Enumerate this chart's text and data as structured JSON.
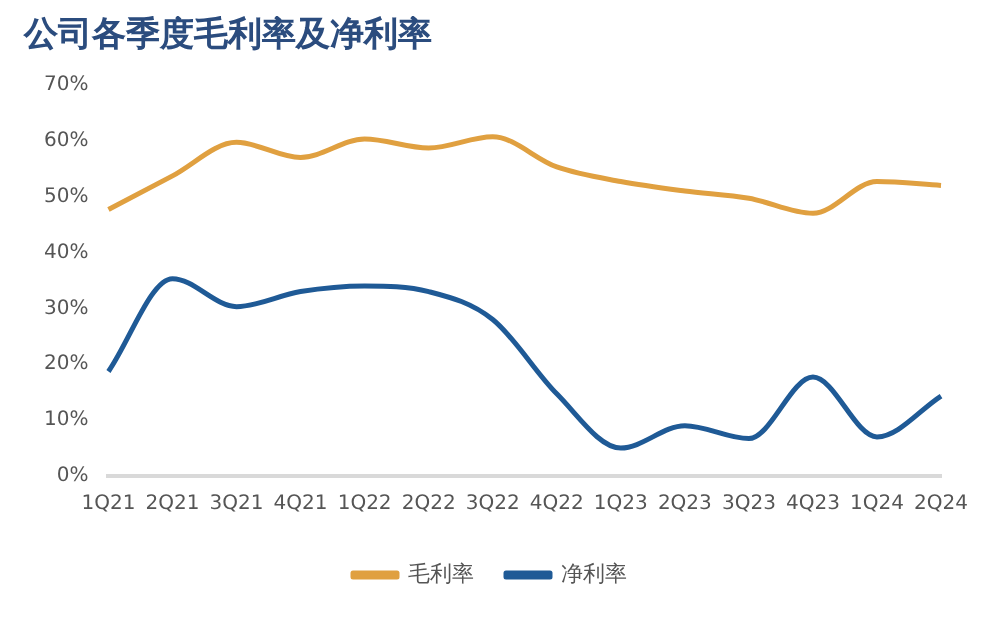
{
  "chart_data": {
    "type": "line",
    "title": "公司各季度毛利率及净利率",
    "categories": [
      "1Q21",
      "2Q21",
      "3Q21",
      "4Q21",
      "1Q22",
      "2Q22",
      "3Q22",
      "4Q22",
      "1Q23",
      "2Q23",
      "3Q23",
      "4Q23",
      "1Q24",
      "2Q24"
    ],
    "series": [
      {
        "name": "毛利率",
        "color": "#e0a040",
        "values": [
          47.7,
          53.7,
          59.7,
          57,
          60.3,
          58.7,
          60.7,
          55.3,
          52.7,
          51,
          49.7,
          47,
          52.7,
          52
        ]
      },
      {
        "name": "净利率",
        "color": "#1f5a96",
        "values": [
          18.7,
          35.3,
          30.3,
          33,
          34,
          33,
          28,
          14.7,
          5,
          9,
          6.7,
          17.7,
          7,
          14.3
        ]
      }
    ],
    "ylim": [
      0,
      70
    ],
    "yticks": [
      {
        "value": 0,
        "label": "0%"
      },
      {
        "value": 10,
        "label": "10%"
      },
      {
        "value": 20,
        "label": "20%"
      },
      {
        "value": 30,
        "label": "30%"
      },
      {
        "value": 40,
        "label": "40%"
      },
      {
        "value": 50,
        "label": "50%"
      },
      {
        "value": 60,
        "label": "60%"
      },
      {
        "value": 70,
        "label": "70%"
      }
    ],
    "grid": false,
    "legend": "bottom",
    "marker": "none",
    "line_style": "solid"
  }
}
